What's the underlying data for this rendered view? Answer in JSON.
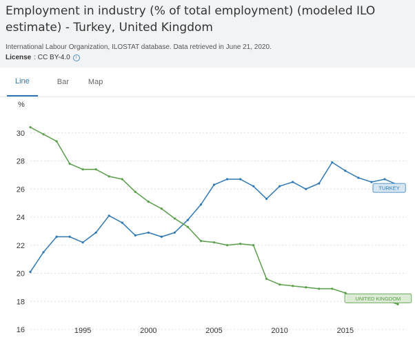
{
  "header": {
    "title_line1": "Employment in industry (% of total employment) (modeled ILO",
    "title_line2": "estimate) - Turkey, United Kingdom",
    "source": "International Labour Organization, ILOSTAT database. Data retrieved in June 21, 2020.",
    "license_label": "License",
    "license_value": ": CC BY-4.0",
    "info_icon": "i"
  },
  "tabs": [
    {
      "label": "Line",
      "active": true
    },
    {
      "label": "Bar",
      "active": false
    },
    {
      "label": "Map",
      "active": false
    }
  ],
  "colors": {
    "turkey": "#2e78b4",
    "uk": "#5a9e4a",
    "turkey_label_bg": "#d6e6f3",
    "uk_label_bg": "#dcebd5"
  },
  "chart_data": {
    "type": "line",
    "ylabel": "%",
    "ylim": [
      16,
      32
    ],
    "yticks": [
      16,
      18,
      20,
      22,
      24,
      26,
      28,
      30
    ],
    "xlim": [
      1991,
      2019
    ],
    "xticks": [
      1995,
      2000,
      2005,
      2010,
      2015
    ],
    "grid": true,
    "x": [
      1991,
      1992,
      1993,
      1994,
      1995,
      1996,
      1997,
      1998,
      1999,
      2000,
      2001,
      2002,
      2003,
      2004,
      2005,
      2006,
      2007,
      2008,
      2009,
      2010,
      2011,
      2012,
      2013,
      2014,
      2015,
      2016,
      2017,
      2018,
      2019
    ],
    "series": [
      {
        "name": "TURKEY",
        "values": [
          20.1,
          21.5,
          22.6,
          22.6,
          22.2,
          22.9,
          24.1,
          23.6,
          22.7,
          22.9,
          22.6,
          22.9,
          23.8,
          24.9,
          26.3,
          26.7,
          26.7,
          26.2,
          25.3,
          26.2,
          26.5,
          26.0,
          26.4,
          27.9,
          27.3,
          26.8,
          26.5,
          26.7,
          26.3
        ]
      },
      {
        "name": "UNITED KINGDOM",
        "values": [
          30.4,
          29.9,
          29.4,
          27.8,
          27.4,
          27.4,
          26.9,
          26.7,
          25.8,
          25.1,
          24.6,
          23.9,
          23.3,
          22.3,
          22.2,
          22.0,
          22.1,
          22.0,
          19.6,
          19.2,
          19.1,
          19.0,
          18.9,
          18.9,
          18.6,
          18.2,
          18.1,
          18.1,
          17.8
        ]
      }
    ]
  }
}
